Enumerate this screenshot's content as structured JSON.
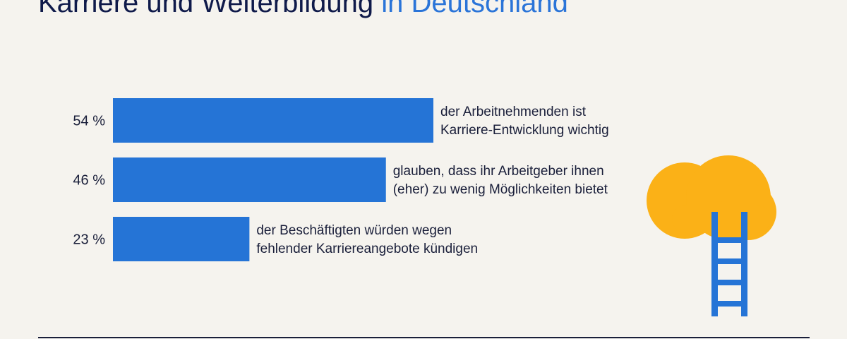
{
  "title": {
    "part1": "Karriere und Weiterbildung",
    "part2": "in Deutschland"
  },
  "colors": {
    "bar": "#2574d6",
    "title_dark": "#0f1a4a",
    "title_highlight": "#2a74d8",
    "cloud": "#fbb117",
    "ladder": "#2574d6"
  },
  "chart_data": {
    "type": "bar",
    "orientation": "horizontal",
    "categories": [
      "der Arbeitnehmenden ist Karriere-Entwicklung wichtig",
      "glauben, dass ihr Arbeitgeber ihnen (eher) zu wenig Möglichkeiten bietet",
      "der Beschäftigten würden wegen fehlender Karriereangebote kündigen"
    ],
    "values": [
      54,
      46,
      23
    ],
    "value_labels": [
      "54 %",
      "46 %",
      "23 %"
    ],
    "description_lines": [
      [
        "der Arbeitnehmenden ist",
        "Karriere-Entwicklung wichtig"
      ],
      [
        "glauben, dass ihr Arbeitgeber ihnen",
        "(eher) zu wenig Möglichkeiten bietet"
      ],
      [
        "der Beschäftigten würden wegen",
        "fehlender Karriereangebote kündigen"
      ]
    ],
    "unit": "%",
    "title": "Karriere und Weiterbildung in Deutschland",
    "xlabel": "",
    "ylabel": "",
    "grid": false,
    "legend": "none"
  },
  "illustration": {
    "icons": [
      "cloud-icon",
      "ladder-icon"
    ]
  }
}
